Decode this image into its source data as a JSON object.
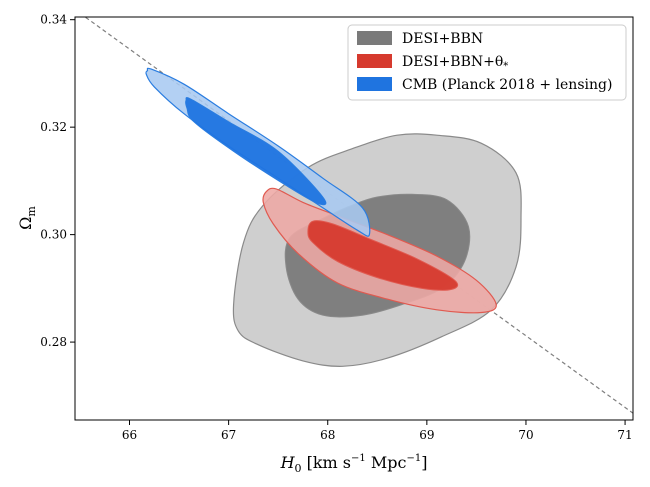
{
  "chart_data": {
    "type": "contour",
    "xlabel_main": "H",
    "xlabel_sub": "0",
    "xlabel_units_a": " [km s",
    "xlabel_exp1": "−1",
    "xlabel_units_b": " Mpc",
    "xlabel_exp2": "−1",
    "xlabel_close": "]",
    "ylabel_main": "Ω",
    "ylabel_sub": "m",
    "xlim": [
      65.45,
      71.08
    ],
    "ylim": [
      0.2655,
      0.3405
    ],
    "xticks": [
      "66",
      "67",
      "68",
      "69",
      "70",
      "71"
    ],
    "yticks": [
      "0.28",
      "0.30",
      "0.32",
      "0.34"
    ],
    "legend_position": "top-right",
    "series": [
      {
        "name": "DESI+BBN",
        "color_outer": "#c8c8c8",
        "color_inner": "#7a7a7a",
        "edge": "#8a8a8a",
        "outer": [
          [
            67.05,
            0.287
          ],
          [
            67.15,
            0.2985
          ],
          [
            67.35,
            0.3055
          ],
          [
            67.8,
            0.3125
          ],
          [
            68.25,
            0.316
          ],
          [
            68.7,
            0.3185
          ],
          [
            69.1,
            0.3185
          ],
          [
            69.55,
            0.317
          ],
          [
            69.9,
            0.3115
          ],
          [
            69.95,
            0.303
          ],
          [
            69.9,
            0.294
          ],
          [
            69.65,
            0.286
          ],
          [
            69.15,
            0.281
          ],
          [
            68.6,
            0.277
          ],
          [
            68.15,
            0.2755
          ],
          [
            67.75,
            0.2765
          ],
          [
            67.3,
            0.2795
          ],
          [
            67.1,
            0.282
          ]
        ],
        "inner": [
          [
            67.58,
            0.294
          ],
          [
            67.62,
            0.2995
          ],
          [
            67.95,
            0.303
          ],
          [
            68.25,
            0.3055
          ],
          [
            68.5,
            0.307
          ],
          [
            68.85,
            0.3075
          ],
          [
            69.2,
            0.3065
          ],
          [
            69.42,
            0.3015
          ],
          [
            69.38,
            0.295
          ],
          [
            69.15,
            0.29
          ],
          [
            68.75,
            0.287
          ],
          [
            68.35,
            0.285
          ],
          [
            67.95,
            0.285
          ],
          [
            67.7,
            0.288
          ]
        ]
      },
      {
        "name": "DESI+BBN+θ",
        "name_sub": "*",
        "color_outer": "#eea8a5",
        "color_inner": "#d63a2e",
        "edge": "#e05a50",
        "outer": [
          [
            67.38,
            0.308
          ],
          [
            67.48,
            0.3085
          ],
          [
            67.75,
            0.306
          ],
          [
            68.1,
            0.3035
          ],
          [
            68.6,
            0.3
          ],
          [
            69.1,
            0.296
          ],
          [
            69.5,
            0.2915
          ],
          [
            69.7,
            0.287
          ],
          [
            69.55,
            0.2855
          ],
          [
            69.1,
            0.286
          ],
          [
            68.6,
            0.288
          ],
          [
            68.1,
            0.291
          ],
          [
            67.7,
            0.2965
          ],
          [
            67.45,
            0.302
          ],
          [
            67.35,
            0.306
          ]
        ],
        "inner": [
          [
            67.85,
            0.3025
          ],
          [
            68.05,
            0.302
          ],
          [
            68.45,
            0.299
          ],
          [
            68.9,
            0.2955
          ],
          [
            69.28,
            0.2915
          ],
          [
            69.25,
            0.2898
          ],
          [
            68.95,
            0.29
          ],
          [
            68.5,
            0.292
          ],
          [
            68.1,
            0.295
          ],
          [
            67.85,
            0.2985
          ],
          [
            67.8,
            0.3005
          ]
        ]
      },
      {
        "name": "CMB (Planck 2018 + lensing)",
        "color_outer": "#a9c9f1",
        "color_inner": "#1f74e0",
        "edge": "#2a7de0",
        "outer": [
          [
            66.18,
            0.3305
          ],
          [
            66.22,
            0.3308
          ],
          [
            66.55,
            0.328
          ],
          [
            67.0,
            0.3225
          ],
          [
            67.5,
            0.3165
          ],
          [
            67.95,
            0.3105
          ],
          [
            68.35,
            0.305
          ],
          [
            68.42,
            0.3
          ],
          [
            68.3,
            0.3008
          ],
          [
            67.95,
            0.305
          ],
          [
            67.5,
            0.3105
          ],
          [
            67.0,
            0.3165
          ],
          [
            66.55,
            0.3225
          ],
          [
            66.25,
            0.3275
          ],
          [
            66.17,
            0.3298
          ]
        ],
        "inner": [
          [
            66.57,
            0.325
          ],
          [
            66.62,
            0.3252
          ],
          [
            67.0,
            0.321
          ],
          [
            67.5,
            0.3155
          ],
          [
            67.95,
            0.307
          ],
          [
            67.9,
            0.3058
          ],
          [
            67.55,
            0.3095
          ],
          [
            67.05,
            0.3155
          ],
          [
            66.65,
            0.321
          ],
          [
            66.58,
            0.3235
          ]
        ]
      }
    ],
    "degeneracy_line": {
      "x": [
        65.5,
        71.1
      ],
      "y": [
        0.3412,
        0.2665
      ],
      "color": "#7f7f7f"
    }
  }
}
